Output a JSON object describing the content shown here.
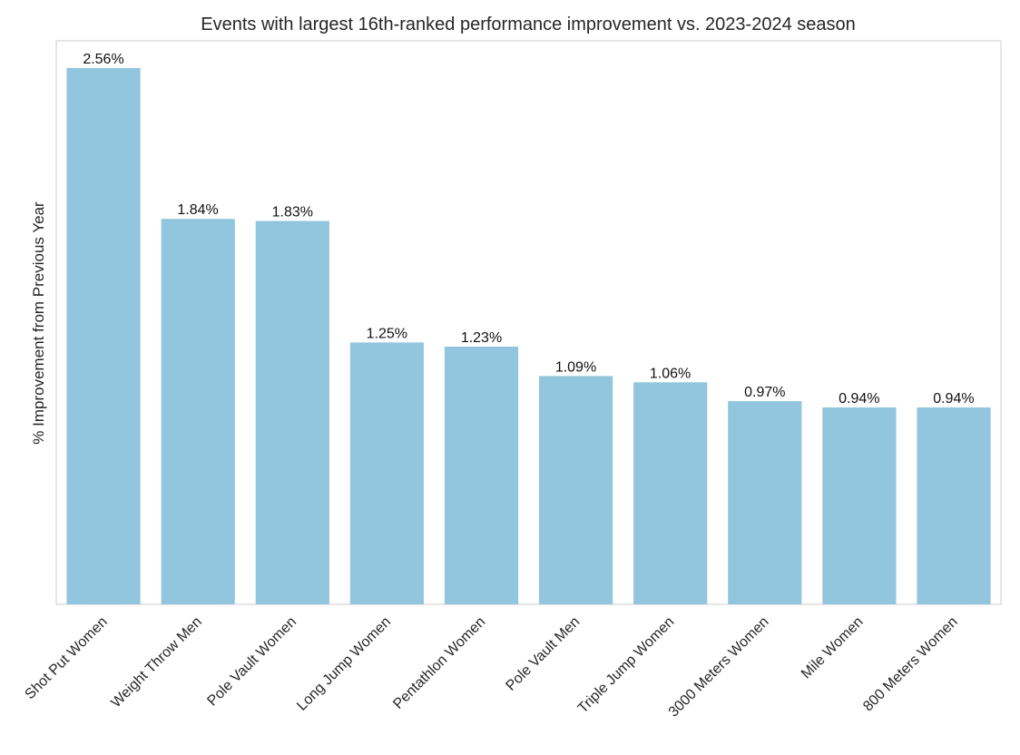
{
  "chart_data": {
    "type": "bar",
    "title": "Events with largest 16th-ranked performance improvement vs. 2023-2024 season",
    "xlabel": "",
    "ylabel": "% Improvement from Previous Year",
    "categories": [
      "Shot Put Women",
      "Weight Throw Men",
      "Pole Vault Women",
      "Long Jump Women",
      "Pentathlon Women",
      "Pole Vault Men",
      "Triple Jump Women",
      "3000 Meters Women",
      "Mile Women",
      "800 Meters Women"
    ],
    "values": [
      2.56,
      1.84,
      1.83,
      1.25,
      1.23,
      1.09,
      1.06,
      0.97,
      0.94,
      0.94
    ],
    "data_labels": [
      "2.56%",
      "1.84%",
      "1.83%",
      "1.25%",
      "1.23%",
      "1.09%",
      "1.06%",
      "0.97%",
      "0.94%",
      "0.94%"
    ],
    "ylim": [
      0,
      2.69
    ],
    "grid": false,
    "y_ticks_shown": false,
    "bar_color": "#92c5de"
  }
}
